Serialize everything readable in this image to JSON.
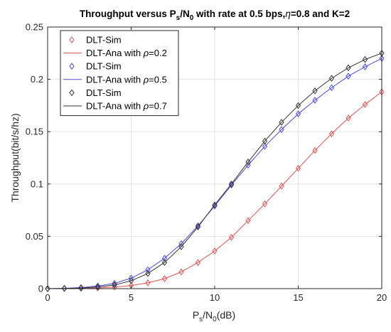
{
  "figure": {
    "title_parts": [
      "Throughput versus P",
      "s",
      "/N",
      "0",
      " with rate at 0.5 bps,",
      "η",
      "=0.8 and K=2"
    ],
    "xlabel_parts": [
      "P",
      "s",
      "/N",
      "0",
      "(dB)"
    ],
    "ylabel": "Throughput(bit/s/hz)"
  },
  "legend": [
    {
      "kind": "marker",
      "label": "DLT-Sim",
      "color": "#d9534f"
    },
    {
      "kind": "line",
      "label_prefix": "DLT-Ana with ",
      "rho": "ρ",
      "label_suffix": "=0.2",
      "color": "#d9534f"
    },
    {
      "kind": "marker",
      "label": "DLT-Sim",
      "color": "#4a4adb"
    },
    {
      "kind": "line",
      "label_prefix": "DLT-Ana with ",
      "rho": "ρ",
      "label_suffix": "=0.5",
      "color": "#4a4adb"
    },
    {
      "kind": "marker",
      "label": "DLT-Sim",
      "color": "#333333"
    },
    {
      "kind": "line",
      "label_prefix": "DLT-Ana with ",
      "rho": "ρ",
      "label_suffix": "=0.7",
      "color": "#333333"
    }
  ],
  "chart_data": {
    "type": "line",
    "xlim": [
      0,
      20
    ],
    "ylim": [
      0,
      0.25
    ],
    "xticks": [
      0,
      5,
      10,
      15,
      20
    ],
    "yticks": [
      0,
      0.05,
      0.1,
      0.15,
      0.2,
      0.25
    ],
    "xtick_labels": [
      "0",
      "5",
      "10",
      "15",
      "20"
    ],
    "ytick_labels": [
      "0",
      "0.05",
      "0.1",
      "0.15",
      "0.2",
      "0.25"
    ],
    "grid": true,
    "legend_position": "top-left",
    "x": [
      0,
      1,
      2,
      3,
      4,
      5,
      6,
      7,
      8,
      9,
      10,
      11,
      12,
      13,
      14,
      15,
      16,
      17,
      18,
      19,
      20
    ],
    "series": [
      {
        "color": "#d9534f",
        "style": "line+diamond",
        "values": [
          0,
          0.0001,
          0.0003,
          0.0007,
          0.0015,
          0.003,
          0.0055,
          0.0095,
          0.016,
          0.025,
          0.036,
          0.049,
          0.065,
          0.081,
          0.098,
          0.115,
          0.132,
          0.148,
          0.163,
          0.176,
          0.188
        ]
      },
      {
        "color": "#4a4adb",
        "style": "line+diamond",
        "values": [
          0,
          0.0003,
          0.001,
          0.0025,
          0.005,
          0.01,
          0.018,
          0.029,
          0.043,
          0.06,
          0.079,
          0.099,
          0.118,
          0.136,
          0.152,
          0.167,
          0.18,
          0.192,
          0.203,
          0.212,
          0.22
        ]
      },
      {
        "color": "#333333",
        "style": "line+diamond",
        "values": [
          0,
          0.0002,
          0.0006,
          0.0016,
          0.0035,
          0.0075,
          0.0145,
          0.025,
          0.04,
          0.059,
          0.08,
          0.1,
          0.121,
          0.141,
          0.159,
          0.175,
          0.189,
          0.201,
          0.211,
          0.219,
          0.225
        ]
      }
    ]
  }
}
